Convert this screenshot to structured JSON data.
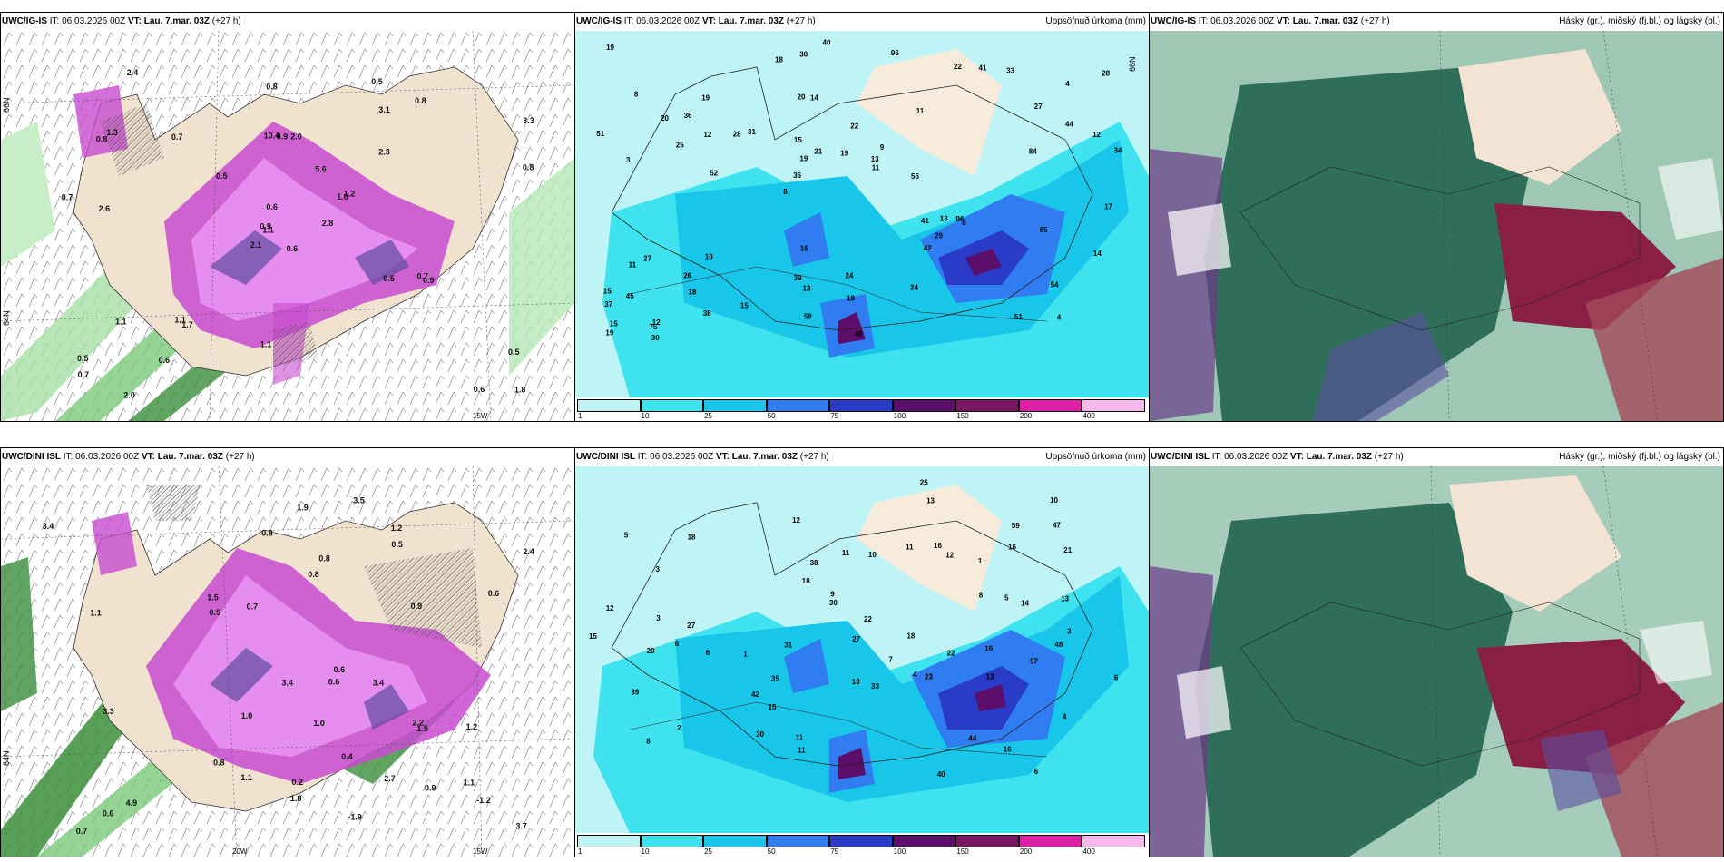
{
  "panels": [
    {
      "id": "p1",
      "model": "UWC/IG-IS",
      "it_label": "IT:",
      "it": "06.03.2026 00Z",
      "vt_label": "VT:",
      "vt": "Lau. 7.mar. 03Z",
      "lead": "(+27 h)",
      "title": ""
    },
    {
      "id": "p2",
      "model": "UWC/IG-IS",
      "it_label": "IT:",
      "it": "06.03.2026 00Z",
      "vt_label": "VT:",
      "vt": "Lau. 7.mar. 03Z",
      "lead": "(+27 h)",
      "title": "Uppsöfnuð úrkoma (mm)"
    },
    {
      "id": "p3",
      "model": "UWC/IG-IS",
      "it_label": "IT:",
      "it": "06.03.2026 00Z",
      "vt_label": "VT:",
      "vt": "Lau. 7.mar. 03Z",
      "lead": "(+27 h)",
      "title": "Háský (gr.), miðský (fj.bl.) og lágský (bl.)"
    },
    {
      "id": "p4",
      "model": "UWC/DINI ISL",
      "it_label": "IT:",
      "it": "06.03.2026 00Z",
      "vt_label": "VT:",
      "vt": "Lau. 7.mar. 03Z",
      "lead": "(+27 h)",
      "title": ""
    },
    {
      "id": "p5",
      "model": "UWC/DINI ISL",
      "it_label": "IT:",
      "it": "06.03.2026 00Z",
      "vt_label": "VT:",
      "vt": "Lau. 7.mar. 03Z",
      "lead": "(+27 h)",
      "title": "Uppsöfnuð úrkoma (mm)"
    },
    {
      "id": "p6",
      "model": "UWC/DINI ISL",
      "it_label": "IT:",
      "it": "06.03.2026 00Z",
      "vt_label": "VT:",
      "vt": "Lau. 7.mar. 03Z",
      "lead": "(+27 h)",
      "title": "Háský (gr.), miðský (fj.bl.) og lágský (bl.)"
    }
  ],
  "colorbar": {
    "ticks": [
      "1",
      "10",
      "25",
      "50",
      "75",
      "100",
      "150",
      "200",
      "400"
    ],
    "colors": [
      "#bff4f7",
      "#3fe3f0",
      "#18c6ea",
      "#2f7df0",
      "#2a3bc8",
      "#5b0f6a",
      "#7a1560",
      "#e01fa8",
      "#f7b8ee"
    ]
  },
  "axis_labels": {
    "lat66": "66N",
    "lat64": "64N",
    "lon20": "20W",
    "lon15": "15W"
  },
  "precip_top": [
    "4",
    "3",
    "4",
    "8",
    "11",
    "12",
    "20",
    "22",
    "27",
    "31",
    "37",
    "18",
    "14",
    "9",
    "8",
    "8",
    "30",
    "34",
    "41",
    "44",
    "36",
    "39",
    "19",
    "19",
    "22",
    "10",
    "51",
    "54",
    "96",
    "48",
    "28",
    "25",
    "42",
    "38",
    "12",
    "13",
    "15",
    "13",
    "11",
    "11",
    "27",
    "28",
    "29",
    "24",
    "26",
    "30",
    "19",
    "24",
    "33",
    "40",
    "52",
    "51",
    "36",
    "41",
    "75",
    "96",
    "18",
    "21",
    "14",
    "16",
    "15",
    "13",
    "12",
    "15",
    "19",
    "20",
    "17",
    "15",
    "19",
    "19",
    "45",
    "56",
    "65",
    "58",
    "84"
  ],
  "precip_bottom": [
    "6",
    "6",
    "4",
    "5",
    "4",
    "3",
    "2",
    "1",
    "1",
    "11",
    "12",
    "16",
    "15",
    "12",
    "18",
    "39",
    "16",
    "22",
    "12",
    "8",
    "10",
    "10",
    "5",
    "6",
    "3",
    "3",
    "6",
    "27",
    "30",
    "47",
    "23",
    "20",
    "42",
    "16",
    "38",
    "57",
    "48",
    "44",
    "59",
    "40",
    "35",
    "33",
    "30",
    "25",
    "31",
    "27",
    "21",
    "13",
    "11",
    "10",
    "22",
    "13",
    "13",
    "14",
    "18",
    "15",
    "11",
    "9",
    "7",
    "8",
    "11",
    "16",
    "18"
  ],
  "wind_top": [
    "0.6",
    "0.8",
    "1.1",
    "0.5",
    "1.0",
    "1.7",
    "0.5",
    "2.0",
    "3.1",
    "2.8",
    "2.4",
    "1.8",
    "2.6",
    "3.3",
    "2.1",
    "2.3",
    "2.0",
    "10.4",
    "5.6",
    "1.1",
    "0.5",
    "0.7",
    "0.6",
    "0.9",
    "1.2",
    "0.9",
    "1.3",
    "0.8",
    "0.7",
    "0.5",
    "0.8",
    "0.9",
    "1.1",
    "0.6",
    "0.7",
    "0.8",
    "1.1",
    "0.6",
    "0.5",
    "0.7"
  ],
  "wind_bottom": [
    "0.6",
    "1.2",
    "0.6",
    "1.0",
    "0.8",
    "3.5",
    "1.1",
    "1.2",
    "0.9",
    "0.8",
    "3.7",
    "0.5",
    "1.1",
    "1.9",
    "2.7",
    "1.5",
    "2.2",
    "3.3",
    "3.4",
    "2.4",
    "3.4",
    "4.9",
    "1.8",
    "3.4",
    "1.5",
    "0.5",
    "0.7",
    "0.8",
    "0.6",
    "0.4",
    "-1.2",
    "1.0",
    "0.8",
    "0.7",
    "0.6",
    "-1.9",
    "0.2",
    "0.9",
    "1.1"
  ]
}
